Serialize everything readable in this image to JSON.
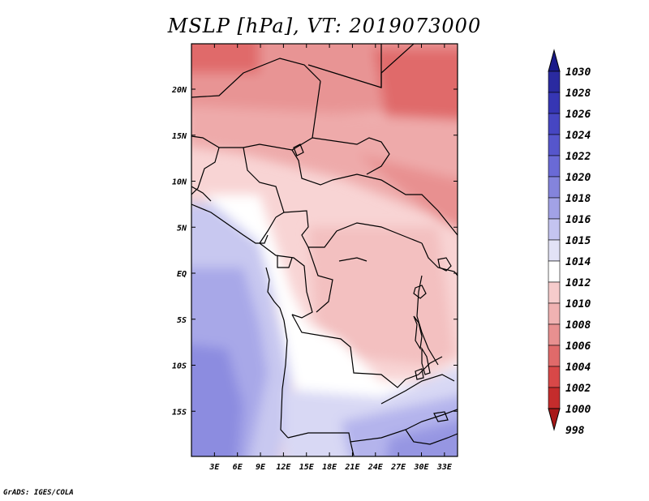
{
  "title": "MSLP [hPa], VT: 2019073000",
  "footer": "GrADS: IGES/COLA",
  "map": {
    "lat_labels": [
      "20N",
      "15N",
      "10N",
      "5N",
      "EQ",
      "5S",
      "10S",
      "15S"
    ],
    "lat_values": [
      20,
      15,
      10,
      5,
      0,
      -5,
      -10,
      -15
    ],
    "lon_labels": [
      "3E",
      "6E",
      "9E",
      "12E",
      "15E",
      "18E",
      "21E",
      "24E",
      "27E",
      "30E",
      "33E"
    ],
    "lon_values": [
      3,
      6,
      9,
      12,
      15,
      18,
      21,
      24,
      27,
      30,
      33
    ]
  },
  "colorbar": {
    "levels": [
      "1030",
      "1028",
      "1026",
      "1024",
      "1022",
      "1020",
      "1018",
      "1016",
      "1015",
      "1014",
      "1012",
      "1010",
      "1008",
      "1006",
      "1004",
      "1002",
      "1000",
      "998"
    ],
    "colors": [
      "#1b1b8a",
      "#2a2aa0",
      "#3636b4",
      "#4646c2",
      "#5656cc",
      "#6a6ad6",
      "#8484dc",
      "#a2a2e6",
      "#c4c4f0",
      "#e2e2f6",
      "#ffffff",
      "#f6cccc",
      "#f0b2b2",
      "#e89090",
      "#e06a6a",
      "#d84848",
      "#c42c2c",
      "#a81818"
    ]
  }
}
